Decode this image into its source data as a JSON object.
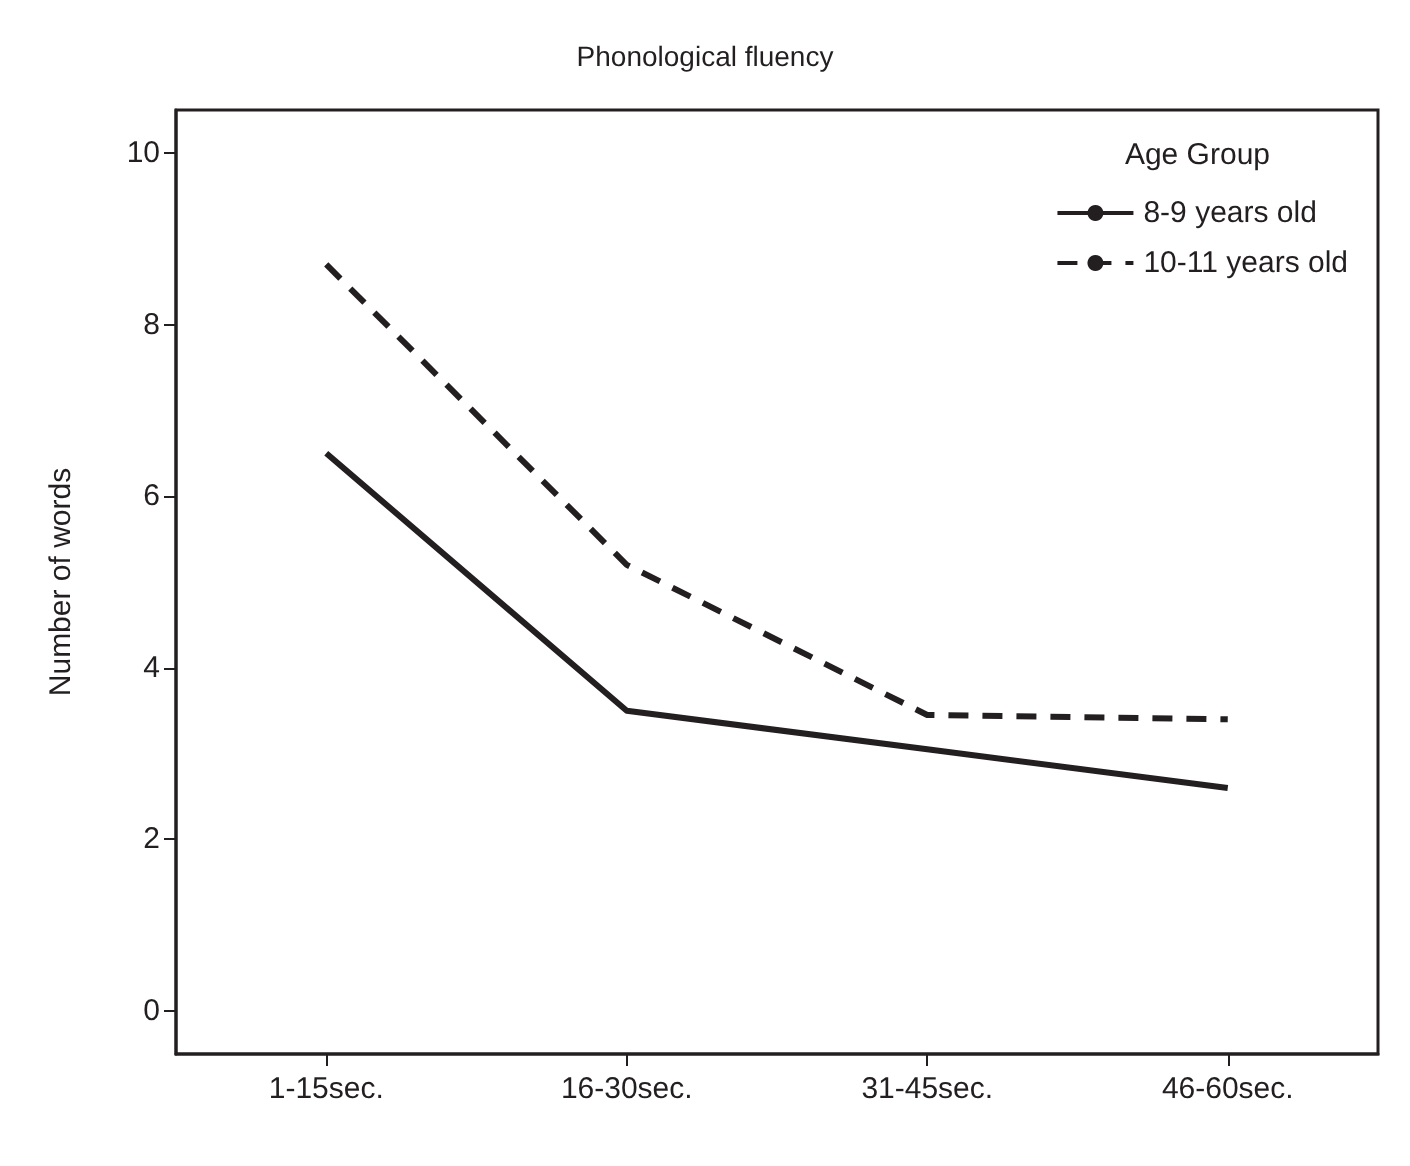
{
  "chart_data": {
    "type": "line",
    "title": "Phonological fluency",
    "ylabel": "Number of words",
    "legend_title": "Age Group",
    "legend": "top right",
    "grid": false,
    "marker": "none",
    "categories": [
      "1-15sec.",
      "16-30sec.",
      "31-45sec.",
      "46-60sec."
    ],
    "ylim": [
      -0.5,
      10.5
    ],
    "yticks": [
      0,
      2,
      4,
      6,
      8,
      10
    ],
    "series": [
      {
        "name": "8-9 years old",
        "color": "#231f20",
        "line_style": "solid",
        "values": [
          6.5,
          3.5,
          3.05,
          2.6
        ]
      },
      {
        "name": "10-11 years old",
        "color": "#231f20",
        "line_style": "dashed",
        "values": [
          8.7,
          5.2,
          3.45,
          3.4
        ]
      }
    ]
  }
}
